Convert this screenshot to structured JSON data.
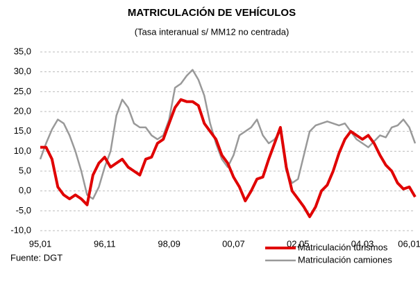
{
  "chart_data": {
    "type": "line",
    "title": "MATRICULACIÓN DE VEHÍCULOS",
    "subtitle": "(Tasa interanual s/ MM12 no centrada)",
    "source": "Fuente: DGT",
    "categories": [
      "95,01",
      null,
      null,
      null,
      null,
      null,
      null,
      null,
      null,
      null,
      null,
      "96,11",
      null,
      null,
      null,
      null,
      null,
      null,
      null,
      null,
      null,
      null,
      "98,09",
      null,
      null,
      null,
      null,
      null,
      null,
      null,
      null,
      null,
      null,
      "00,07",
      null,
      null,
      null,
      null,
      null,
      null,
      null,
      null,
      null,
      null,
      "02,05",
      null,
      null,
      null,
      null,
      null,
      null,
      null,
      null,
      null,
      null,
      "04,03",
      null,
      null,
      null,
      null,
      null,
      null,
      null,
      "06,01",
      null
    ],
    "series": [
      {
        "name": "Matriculación turismos",
        "color": "#e00000",
        "values": [
          11,
          11,
          8,
          1,
          -1,
          -2,
          -1,
          -2,
          -3.5,
          4,
          7,
          8.5,
          6,
          7,
          8,
          6,
          5,
          4,
          8,
          8.5,
          12,
          13,
          17,
          21,
          23,
          22.5,
          22.5,
          21.5,
          17,
          15,
          13,
          9,
          7,
          3.5,
          1,
          -2.5,
          0,
          3,
          3.5,
          8,
          12,
          16,
          6,
          0,
          -2,
          -4,
          -6.5,
          -4,
          0,
          1.5,
          5,
          9.5,
          13,
          15,
          14,
          13,
          14,
          12,
          9,
          6.5,
          5,
          2,
          0.5,
          1,
          -1.5
        ]
      },
      {
        "name": "Matriculación camiones",
        "color": "#999999",
        "values": [
          8,
          12,
          15.5,
          18,
          17,
          14,
          10,
          5,
          -1,
          -2,
          1,
          6,
          10,
          19,
          23,
          21,
          17,
          16,
          16,
          14,
          13,
          14,
          18,
          26,
          27,
          29,
          30.5,
          28,
          24,
          17,
          12,
          8,
          6,
          9,
          14,
          15,
          16,
          18,
          14,
          12,
          13,
          15,
          5,
          2,
          3,
          9,
          15,
          16.5,
          17,
          17.5,
          17,
          16.5,
          17,
          15,
          13,
          12,
          11,
          12.5,
          14,
          13.5,
          16,
          16.5,
          18,
          16,
          12
        ]
      }
    ],
    "ylim": [
      -10,
      35
    ],
    "yticks": [
      {
        "value": -10,
        "label": "-10,0"
      },
      {
        "value": -5,
        "label": "-5,0"
      },
      {
        "value": 0,
        "label": "0,0"
      },
      {
        "value": 5,
        "label": "5,0"
      },
      {
        "value": 10,
        "label": "10,0"
      },
      {
        "value": 15,
        "label": "15,0"
      },
      {
        "value": 20,
        "label": "20,0"
      },
      {
        "value": 25,
        "label": "25,0"
      },
      {
        "value": 30,
        "label": "30,0"
      },
      {
        "value": 35,
        "label": "35,0"
      }
    ],
    "grid": true
  }
}
